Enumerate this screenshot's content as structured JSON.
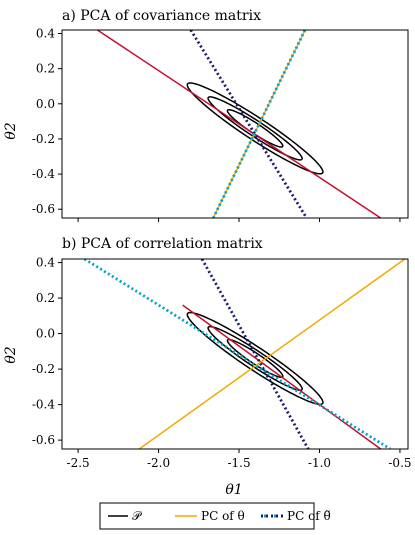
{
  "chart_data": [
    {
      "type": "line",
      "title": "a) PCA of covariance matrix",
      "xlabel": "",
      "ylabel": "θ2",
      "xlim": [
        -2.6,
        -0.45
      ],
      "ylim": [
        -0.65,
        0.42
      ],
      "xticks": [
        -2.5,
        -2.0,
        -1.5,
        -1.0,
        -0.5
      ],
      "xtick_labels": [
        "",
        "",
        "",
        "",
        ""
      ],
      "yticks": [
        0.4,
        0.2,
        0.0,
        -0.2,
        -0.4,
        -0.6
      ],
      "ytick_labels": [
        "0.4",
        "0.2",
        "0.0",
        "-0.2",
        "-0.4",
        "-0.6"
      ],
      "ellipses": {
        "center": [
          -1.4,
          -0.14
        ],
        "angle_deg": -31,
        "semi_axes": [
          [
            0.49,
            0.065
          ],
          [
            0.34,
            0.045
          ],
          [
            0.2,
            0.03
          ]
        ]
      },
      "series": [
        {
          "key": "pc_theta",
          "role": "major",
          "color": "#c8102e",
          "dash": "solid",
          "points": [
            [
              -2.38,
              0.42
            ],
            [
              -0.62,
              -0.65
            ]
          ]
        },
        {
          "key": "pc_theta",
          "role": "minor",
          "color": "#f2a900",
          "dash": "solid",
          "points": [
            [
              -1.66,
              -0.65
            ],
            [
              -1.09,
              0.42
            ]
          ]
        },
        {
          "key": "pc_theta_tilde",
          "role": "major",
          "color": "#1b1b6e",
          "dash": "dotted",
          "points": [
            [
              -1.8,
              0.42
            ],
            [
              -1.08,
              -0.65
            ]
          ]
        },
        {
          "key": "pc_theta_tilde",
          "role": "minor",
          "color": "#00a6c8",
          "dash": "dotted",
          "points": [
            [
              -1.66,
              -0.65
            ],
            [
              -1.09,
              0.42
            ]
          ]
        }
      ]
    },
    {
      "type": "line",
      "title": "b) PCA of correlation matrix",
      "xlabel": "θ1",
      "ylabel": "θ2",
      "xlim": [
        -2.6,
        -0.45
      ],
      "ylim": [
        -0.65,
        0.42
      ],
      "xticks": [
        -2.5,
        -2.0,
        -1.5,
        -1.0,
        -0.5
      ],
      "xtick_labels": [
        "-2.5",
        "-2.0",
        "-1.5",
        "-1.0",
        "-0.5"
      ],
      "yticks": [
        0.4,
        0.2,
        0.0,
        -0.2,
        -0.4,
        -0.6
      ],
      "ytick_labels": [
        "0.4",
        "0.2",
        "0.0",
        "-0.2",
        "-0.4",
        "-0.6"
      ],
      "ellipses": {
        "center": [
          -1.4,
          -0.14
        ],
        "angle_deg": -31,
        "semi_axes": [
          [
            0.49,
            0.065
          ],
          [
            0.34,
            0.045
          ],
          [
            0.2,
            0.03
          ]
        ]
      },
      "series": [
        {
          "key": "pc_theta",
          "role": "major",
          "color": "#c8102e",
          "dash": "solid",
          "points": [
            [
              -1.85,
              0.16
            ],
            [
              -0.62,
              -0.65
            ]
          ]
        },
        {
          "key": "pc_theta",
          "role": "minor",
          "color": "#f2a900",
          "dash": "solid",
          "points": [
            [
              -2.12,
              -0.65
            ],
            [
              -0.47,
              0.42
            ]
          ]
        },
        {
          "key": "pc_theta_tilde",
          "role": "major",
          "color": "#1b1b6e",
          "dash": "dotted",
          "points": [
            [
              -1.73,
              0.42
            ],
            [
              -1.07,
              -0.65
            ]
          ]
        },
        {
          "key": "pc_theta_tilde",
          "role": "minor",
          "color": "#00a6c8",
          "dash": "dotted",
          "points": [
            [
              -2.46,
              0.42
            ],
            [
              -0.56,
              -0.65
            ]
          ]
        }
      ]
    }
  ],
  "legend": {
    "placement": "bottom-center",
    "entries": [
      {
        "label": "𝒫",
        "color": "#000000",
        "dash": "solid"
      },
      {
        "label": "PC of θ",
        "color": "#f2a900",
        "dash": "solid"
      },
      {
        "label": "PC of θ̃",
        "color": "#1b1b6e",
        "dash": "dotted",
        "color2": "#00a6c8"
      }
    ]
  }
}
